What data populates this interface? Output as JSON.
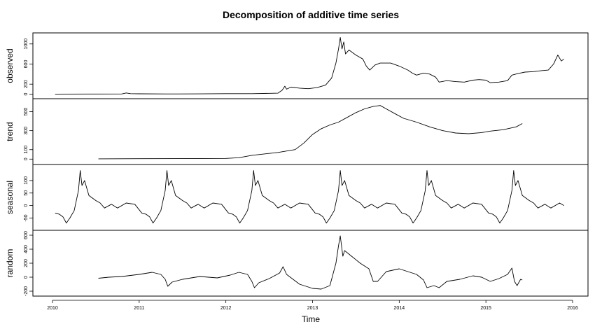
{
  "chart_data": {
    "type": "line",
    "title": "Decomposition of additive time series",
    "xlabel": "Time",
    "xlim": [
      2010.0,
      2016.0
    ],
    "x_ticks": [
      2010,
      2011,
      2012,
      2013,
      2014,
      2015,
      2016
    ],
    "x_tick_labels": [
      "2010",
      "2011",
      "2012",
      "2013",
      "2014",
      "2015",
      "2016"
    ],
    "panels": [
      {
        "name": "observed",
        "ylabel": "observed",
        "ylim": [
          -20,
          1150
        ],
        "y_ticks": [
          0,
          200,
          600,
          1000
        ],
        "y_tick_labels": [
          "0",
          "200",
          "600",
          "1000"
        ],
        "points": [
          [
            2010.03,
            2
          ],
          [
            2010.5,
            3
          ],
          [
            2010.8,
            5
          ],
          [
            2010.85,
            25
          ],
          [
            2010.9,
            10
          ],
          [
            2011.0,
            8
          ],
          [
            2011.3,
            5
          ],
          [
            2011.7,
            7
          ],
          [
            2012.0,
            10
          ],
          [
            2012.3,
            10
          ],
          [
            2012.6,
            20
          ],
          [
            2012.65,
            80
          ],
          [
            2012.68,
            160
          ],
          [
            2012.7,
            100
          ],
          [
            2012.75,
            140
          ],
          [
            2012.85,
            120
          ],
          [
            2012.95,
            110
          ],
          [
            2013.05,
            130
          ],
          [
            2013.15,
            180
          ],
          [
            2013.22,
            320
          ],
          [
            2013.27,
            620
          ],
          [
            2013.3,
            900
          ],
          [
            2013.32,
            1130
          ],
          [
            2013.34,
            900
          ],
          [
            2013.36,
            1040
          ],
          [
            2013.38,
            800
          ],
          [
            2013.42,
            880
          ],
          [
            2013.5,
            780
          ],
          [
            2013.58,
            700
          ],
          [
            2013.62,
            560
          ],
          [
            2013.66,
            480
          ],
          [
            2013.72,
            580
          ],
          [
            2013.78,
            620
          ],
          [
            2013.9,
            620
          ],
          [
            2014.0,
            560
          ],
          [
            2014.1,
            480
          ],
          [
            2014.15,
            420
          ],
          [
            2014.2,
            380
          ],
          [
            2014.28,
            420
          ],
          [
            2014.35,
            400
          ],
          [
            2014.42,
            340
          ],
          [
            2014.46,
            240
          ],
          [
            2014.55,
            270
          ],
          [
            2014.65,
            250
          ],
          [
            2014.75,
            240
          ],
          [
            2014.85,
            280
          ],
          [
            2014.92,
            290
          ],
          [
            2015.0,
            280
          ],
          [
            2015.05,
            230
          ],
          [
            2015.15,
            240
          ],
          [
            2015.25,
            270
          ],
          [
            2015.3,
            380
          ],
          [
            2015.37,
            410
          ],
          [
            2015.45,
            440
          ],
          [
            2015.55,
            450
          ],
          [
            2015.65,
            470
          ],
          [
            2015.72,
            480
          ],
          [
            2015.78,
            600
          ],
          [
            2015.83,
            780
          ],
          [
            2015.87,
            660
          ],
          [
            2015.9,
            700
          ]
        ]
      },
      {
        "name": "trend",
        "ylabel": "trend",
        "ylim": [
          -20,
          600
        ],
        "y_ticks": [
          0,
          100,
          300,
          500
        ],
        "y_tick_labels": [
          "0",
          "100",
          "300",
          "500"
        ],
        "points": [
          [
            2010.53,
            3
          ],
          [
            2011.0,
            4
          ],
          [
            2011.5,
            5
          ],
          [
            2012.0,
            7
          ],
          [
            2012.15,
            15
          ],
          [
            2012.3,
            40
          ],
          [
            2012.6,
            70
          ],
          [
            2012.8,
            100
          ],
          [
            2012.9,
            170
          ],
          [
            2013.0,
            260
          ],
          [
            2013.1,
            320
          ],
          [
            2013.2,
            360
          ],
          [
            2013.3,
            390
          ],
          [
            2013.4,
            440
          ],
          [
            2013.5,
            490
          ],
          [
            2013.6,
            530
          ],
          [
            2013.7,
            555
          ],
          [
            2013.78,
            565
          ],
          [
            2013.85,
            530
          ],
          [
            2013.95,
            480
          ],
          [
            2014.05,
            430
          ],
          [
            2014.2,
            390
          ],
          [
            2014.35,
            340
          ],
          [
            2014.5,
            300
          ],
          [
            2014.65,
            275
          ],
          [
            2014.8,
            268
          ],
          [
            2014.95,
            280
          ],
          [
            2015.05,
            295
          ],
          [
            2015.2,
            310
          ],
          [
            2015.35,
            340
          ],
          [
            2015.42,
            375
          ]
        ]
      },
      {
        "name": "seasonal",
        "ylabel": "seasonal",
        "ylim": [
          -85,
          150
        ],
        "y_ticks": [
          -50,
          0,
          50,
          100
        ],
        "y_tick_labels": [
          "-50",
          "0",
          "50",
          "100"
        ],
        "points": [
          [
            2010.03,
            -30
          ],
          [
            2010.08,
            -35
          ],
          [
            2010.12,
            -45
          ],
          [
            2010.16,
            -70
          ],
          [
            2010.2,
            -50
          ],
          [
            2010.25,
            -20
          ],
          [
            2010.3,
            60
          ],
          [
            2010.32,
            140
          ],
          [
            2010.34,
            80
          ],
          [
            2010.37,
            100
          ],
          [
            2010.42,
            40
          ],
          [
            2010.5,
            20
          ],
          [
            2010.55,
            10
          ],
          [
            2010.6,
            -10
          ],
          [
            2010.68,
            5
          ],
          [
            2010.75,
            -10
          ],
          [
            2010.85,
            10
          ],
          [
            2010.95,
            5
          ],
          [
            2011.03,
            -30
          ],
          [
            2011.08,
            -35
          ],
          [
            2011.12,
            -45
          ],
          [
            2011.16,
            -70
          ],
          [
            2011.2,
            -50
          ],
          [
            2011.25,
            -20
          ],
          [
            2011.3,
            60
          ],
          [
            2011.32,
            140
          ],
          [
            2011.34,
            80
          ],
          [
            2011.37,
            100
          ],
          [
            2011.42,
            40
          ],
          [
            2011.5,
            20
          ],
          [
            2011.55,
            10
          ],
          [
            2011.6,
            -10
          ],
          [
            2011.68,
            5
          ],
          [
            2011.75,
            -10
          ],
          [
            2011.85,
            10
          ],
          [
            2011.95,
            5
          ],
          [
            2012.03,
            -30
          ],
          [
            2012.08,
            -35
          ],
          [
            2012.12,
            -45
          ],
          [
            2012.16,
            -70
          ],
          [
            2012.2,
            -50
          ],
          [
            2012.25,
            -20
          ],
          [
            2012.3,
            60
          ],
          [
            2012.32,
            140
          ],
          [
            2012.34,
            80
          ],
          [
            2012.37,
            100
          ],
          [
            2012.42,
            40
          ],
          [
            2012.5,
            20
          ],
          [
            2012.55,
            10
          ],
          [
            2012.6,
            -10
          ],
          [
            2012.68,
            5
          ],
          [
            2012.75,
            -10
          ],
          [
            2012.85,
            10
          ],
          [
            2012.95,
            5
          ],
          [
            2013.03,
            -30
          ],
          [
            2013.08,
            -35
          ],
          [
            2013.12,
            -45
          ],
          [
            2013.16,
            -70
          ],
          [
            2013.2,
            -50
          ],
          [
            2013.25,
            -20
          ],
          [
            2013.3,
            60
          ],
          [
            2013.32,
            140
          ],
          [
            2013.34,
            80
          ],
          [
            2013.37,
            100
          ],
          [
            2013.42,
            40
          ],
          [
            2013.5,
            20
          ],
          [
            2013.55,
            10
          ],
          [
            2013.6,
            -10
          ],
          [
            2013.68,
            5
          ],
          [
            2013.75,
            -10
          ],
          [
            2013.85,
            10
          ],
          [
            2013.95,
            5
          ],
          [
            2014.03,
            -30
          ],
          [
            2014.08,
            -35
          ],
          [
            2014.12,
            -45
          ],
          [
            2014.16,
            -70
          ],
          [
            2014.2,
            -50
          ],
          [
            2014.25,
            -20
          ],
          [
            2014.3,
            60
          ],
          [
            2014.32,
            140
          ],
          [
            2014.34,
            80
          ],
          [
            2014.37,
            100
          ],
          [
            2014.42,
            40
          ],
          [
            2014.5,
            20
          ],
          [
            2014.55,
            10
          ],
          [
            2014.6,
            -10
          ],
          [
            2014.68,
            5
          ],
          [
            2014.75,
            -10
          ],
          [
            2014.85,
            10
          ],
          [
            2014.95,
            5
          ],
          [
            2015.03,
            -30
          ],
          [
            2015.08,
            -35
          ],
          [
            2015.12,
            -45
          ],
          [
            2015.16,
            -70
          ],
          [
            2015.2,
            -50
          ],
          [
            2015.25,
            -20
          ],
          [
            2015.3,
            60
          ],
          [
            2015.32,
            140
          ],
          [
            2015.34,
            80
          ],
          [
            2015.37,
            100
          ],
          [
            2015.42,
            40
          ],
          [
            2015.5,
            20
          ],
          [
            2015.55,
            10
          ],
          [
            2015.6,
            -10
          ],
          [
            2015.68,
            5
          ],
          [
            2015.75,
            -10
          ],
          [
            2015.85,
            10
          ],
          [
            2015.9,
            0
          ]
        ]
      },
      {
        "name": "random",
        "ylabel": "random",
        "ylim": [
          -220,
          620
        ],
        "y_ticks": [
          -200,
          0,
          200,
          400,
          600
        ],
        "y_tick_labels": [
          "-200",
          "0",
          "200",
          "400",
          "600"
        ],
        "points": [
          [
            2010.53,
            -15
          ],
          [
            2010.65,
            0
          ],
          [
            2010.8,
            10
          ],
          [
            2011.0,
            40
          ],
          [
            2011.15,
            70
          ],
          [
            2011.25,
            40
          ],
          [
            2011.3,
            -30
          ],
          [
            2011.33,
            -130
          ],
          [
            2011.38,
            -70
          ],
          [
            2011.5,
            -30
          ],
          [
            2011.7,
            10
          ],
          [
            2011.9,
            -10
          ],
          [
            2012.05,
            30
          ],
          [
            2012.15,
            70
          ],
          [
            2012.25,
            40
          ],
          [
            2012.3,
            -60
          ],
          [
            2012.33,
            -150
          ],
          [
            2012.38,
            -80
          ],
          [
            2012.5,
            -20
          ],
          [
            2012.62,
            60
          ],
          [
            2012.66,
            150
          ],
          [
            2012.7,
            40
          ],
          [
            2012.85,
            -100
          ],
          [
            2013.0,
            -160
          ],
          [
            2013.1,
            -170
          ],
          [
            2013.2,
            -120
          ],
          [
            2013.27,
            200
          ],
          [
            2013.3,
            450
          ],
          [
            2013.32,
            590
          ],
          [
            2013.35,
            300
          ],
          [
            2013.37,
            380
          ],
          [
            2013.45,
            300
          ],
          [
            2013.55,
            200
          ],
          [
            2013.65,
            120
          ],
          [
            2013.7,
            -60
          ],
          [
            2013.75,
            -60
          ],
          [
            2013.85,
            80
          ],
          [
            2014.0,
            120
          ],
          [
            2014.1,
            80
          ],
          [
            2014.2,
            40
          ],
          [
            2014.28,
            -40
          ],
          [
            2014.32,
            -150
          ],
          [
            2014.4,
            -120
          ],
          [
            2014.46,
            -150
          ],
          [
            2014.55,
            -60
          ],
          [
            2014.7,
            -30
          ],
          [
            2014.85,
            20
          ],
          [
            2014.95,
            0
          ],
          [
            2015.05,
            -60
          ],
          [
            2015.15,
            -20
          ],
          [
            2015.25,
            40
          ],
          [
            2015.3,
            130
          ],
          [
            2015.33,
            -60
          ],
          [
            2015.36,
            -120
          ],
          [
            2015.4,
            -30
          ],
          [
            2015.42,
            -40
          ]
        ]
      }
    ]
  }
}
